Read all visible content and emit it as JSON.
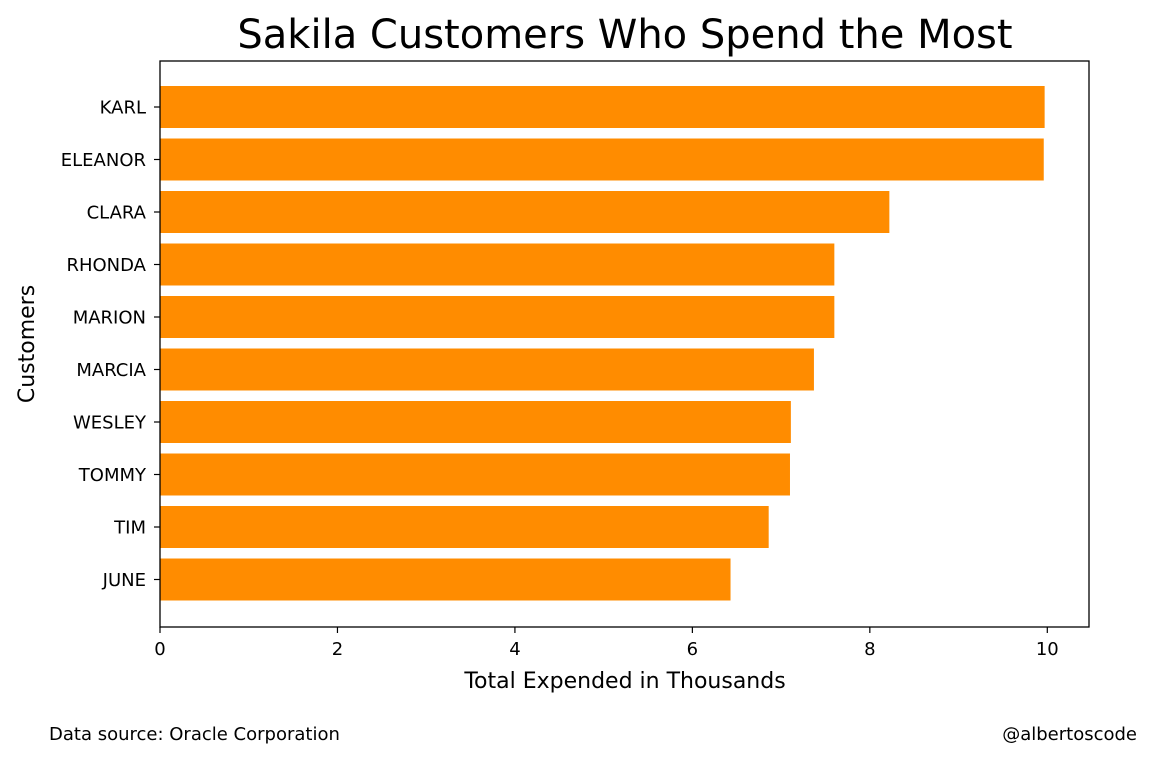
{
  "chart_data": {
    "type": "bar",
    "orientation": "horizontal",
    "title": "Sakila Customers Who Spend the Most",
    "xlabel": "Total Expended in Thousands",
    "ylabel": "Customers",
    "categories": [
      "KARL",
      "ELEANOR",
      "CLARA",
      "RHONDA",
      "MARION",
      "MARCIA",
      "WESLEY",
      "TOMMY",
      "TIM",
      "JUNE"
    ],
    "values": [
      9.97,
      9.96,
      8.22,
      7.6,
      7.6,
      7.37,
      7.11,
      7.1,
      6.86,
      6.43
    ],
    "xlim": [
      0,
      10.47
    ],
    "xticks": [
      "0",
      "2",
      "4",
      "6",
      "8",
      "10"
    ],
    "grid": false,
    "bar_color": "#ff8c00"
  },
  "footer": {
    "source": "Data source: Oracle Corporation",
    "credit": "@albertoscode"
  }
}
